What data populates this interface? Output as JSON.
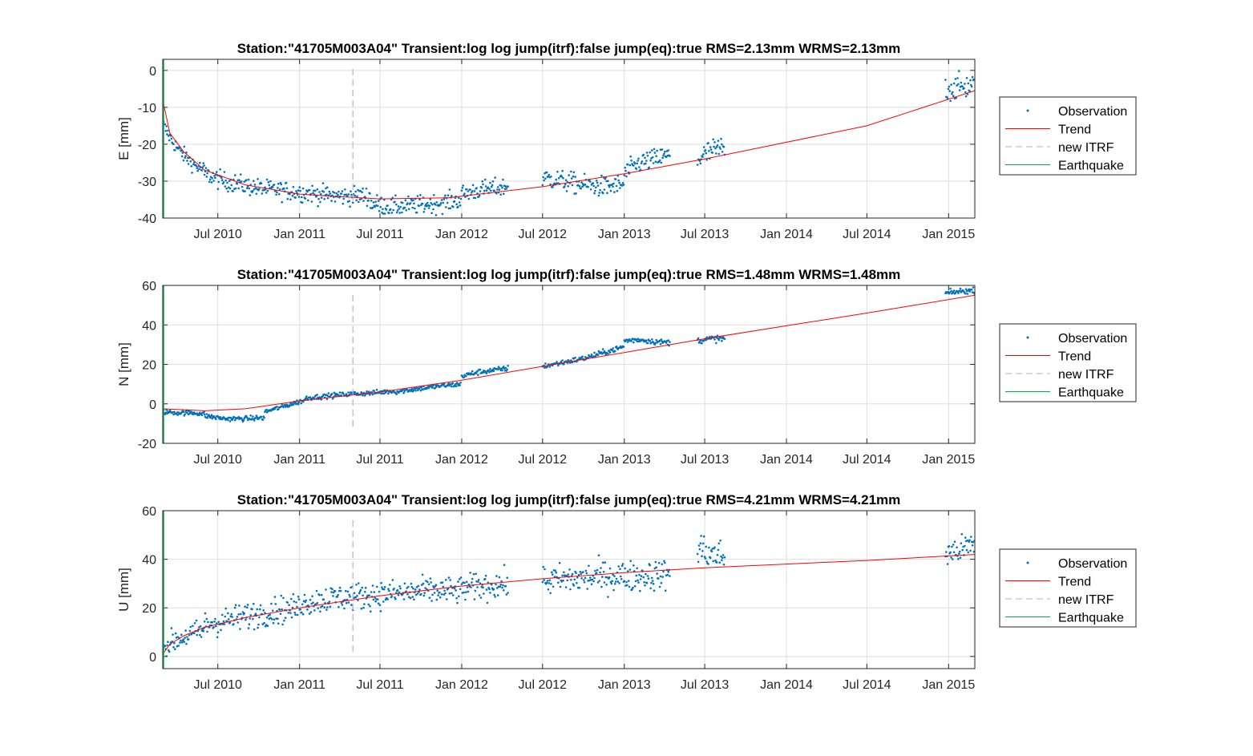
{
  "colors": {
    "observation": "#0072BD",
    "trend": "#FF0000",
    "itrf": "#B0B0D8",
    "earthquake": "#00B050",
    "grid": "#DEDEDE",
    "axis": "#262626"
  },
  "legend": {
    "observation": "Observation",
    "trend": "Trend",
    "itrf": "new ITRF",
    "earthquake": "Earthquake"
  },
  "chart_data": [
    {
      "type": "scatter",
      "component": "E",
      "title": "Station:\"41705M003A04\" Transient:log log jump(itrf):false  jump(eq):true  RMS=2.13mm WRMS=2.13mm",
      "ylabel": "E [mm]",
      "xlim": [
        "2010-02-27",
        "2015-03-01"
      ],
      "ylim": [
        -40,
        3
      ],
      "yticks": [
        0,
        -10,
        -20,
        -30,
        -40
      ],
      "xticks": [
        "Jul 2010",
        "Jan 2011",
        "Jul 2011",
        "Jan 2012",
        "Jul 2012",
        "Jan 2013",
        "Jul 2013",
        "Jan 2014",
        "Jul 2014",
        "Jan 2015"
      ],
      "itrf_jump": "2011-05-01",
      "earthquake": "2010-02-27",
      "trend": {
        "x": [
          "2010-02-27",
          "2010-03-15",
          "2010-04-15",
          "2010-06-01",
          "2010-09-01",
          "2011-01-01",
          "2011-04-01",
          "2011-07-01",
          "2011-12-01",
          "2012-07-01",
          "2013-01-01",
          "2013-07-01",
          "2014-07-01",
          "2015-03-01"
        ],
        "y": [
          -8,
          -17,
          -22,
          -27,
          -31,
          -33.5,
          -34.2,
          -34.8,
          -34.5,
          -31.5,
          -28,
          -24,
          -15,
          -5.5
        ]
      },
      "observations": [
        {
          "start": "2010-03-01",
          "end": "2010-06-01",
          "y": [
            -15,
            -19,
            -22,
            -24,
            -26,
            -27
          ],
          "scatter": 1.5
        },
        {
          "start": "2010-06-01",
          "end": "2010-12-31",
          "y": [
            -28,
            -30,
            -31,
            -32,
            -32.5,
            -33
          ],
          "scatter": 1.8
        },
        {
          "start": "2011-01-01",
          "end": "2011-06-10",
          "y": [
            -33,
            -33.5,
            -34,
            -34,
            -34
          ],
          "scatter": 1.8
        },
        {
          "start": "2011-06-10",
          "end": "2011-12-31",
          "y": [
            -36,
            -37,
            -36.5,
            -36,
            -35
          ],
          "scatter": 1.8
        },
        {
          "start": "2012-01-01",
          "end": "2012-04-15",
          "y": [
            -33.5,
            -32.5,
            -32,
            -31.5
          ],
          "scatter": 1.8
        },
        {
          "start": "2012-07-01",
          "end": "2013-01-01",
          "y": [
            -29,
            -30,
            -31,
            -31.5,
            -31
          ],
          "scatter": 2.0
        },
        {
          "start": "2013-01-01",
          "end": "2013-04-15",
          "y": [
            -28,
            -25,
            -24,
            -23
          ],
          "scatter": 2.0
        },
        {
          "start": "2013-06-15",
          "end": "2013-08-15",
          "y": [
            -24,
            -22,
            -21
          ],
          "scatter": 2.5
        },
        {
          "start": "2014-12-25",
          "end": "2015-03-01",
          "y": [
            -5,
            -4.5,
            -4
          ],
          "scatter": 2.5
        }
      ]
    },
    {
      "type": "scatter",
      "component": "N",
      "title": "Station:\"41705M003A04\" Transient:log log jump(itrf):false  jump(eq):true  RMS=1.48mm WRMS=1.48mm",
      "ylabel": "N [mm]",
      "xlim": [
        "2010-02-27",
        "2015-03-01"
      ],
      "ylim": [
        -20,
        60
      ],
      "yticks": [
        60,
        40,
        20,
        0,
        -20
      ],
      "xticks": [
        "Jul 2010",
        "Jan 2011",
        "Jul 2011",
        "Jan 2012",
        "Jul 2012",
        "Jan 2013",
        "Jul 2013",
        "Jan 2014",
        "Jul 2014",
        "Jan 2015"
      ],
      "itrf_jump": "2011-05-01",
      "earthquake": "2010-02-27",
      "trend": {
        "x": [
          "2010-02-27",
          "2010-06-01",
          "2010-09-01",
          "2011-01-01",
          "2011-07-01",
          "2012-01-01",
          "2012-07-01",
          "2013-01-01",
          "2013-07-01",
          "2014-07-01",
          "2015-03-01"
        ],
        "y": [
          -2.5,
          -3.5,
          -2.5,
          1.5,
          6,
          12,
          19,
          26,
          33,
          46,
          55
        ]
      },
      "observations": [
        {
          "start": "2010-03-01",
          "end": "2010-06-01",
          "y": [
            -4,
            -4.5,
            -4.5,
            -5
          ],
          "scatter": 0.9
        },
        {
          "start": "2010-06-01",
          "end": "2010-10-15",
          "y": [
            -6,
            -7.5,
            -7.5,
            -7
          ],
          "scatter": 0.9
        },
        {
          "start": "2010-10-15",
          "end": "2011-01-15",
          "y": [
            -4,
            -2,
            0,
            2
          ],
          "scatter": 0.9
        },
        {
          "start": "2011-01-15",
          "end": "2011-08-01",
          "y": [
            3,
            4,
            5,
            5.5,
            6.5
          ],
          "scatter": 0.9
        },
        {
          "start": "2011-08-01",
          "end": "2011-12-31",
          "y": [
            6,
            7.5,
            9,
            10
          ],
          "scatter": 0.9
        },
        {
          "start": "2012-01-01",
          "end": "2012-04-15",
          "y": [
            14,
            16,
            17,
            18
          ],
          "scatter": 1.0
        },
        {
          "start": "2012-07-01",
          "end": "2013-01-01",
          "y": [
            19,
            21,
            23,
            26,
            29
          ],
          "scatter": 1.0
        },
        {
          "start": "2013-01-01",
          "end": "2013-04-15",
          "y": [
            32,
            32.5,
            31.5,
            31
          ],
          "scatter": 1.0
        },
        {
          "start": "2013-06-15",
          "end": "2013-08-15",
          "y": [
            32,
            33,
            33
          ],
          "scatter": 1.2
        },
        {
          "start": "2014-12-25",
          "end": "2015-03-01",
          "y": [
            56,
            57,
            57.5
          ],
          "scatter": 1.0
        }
      ]
    },
    {
      "type": "scatter",
      "component": "U",
      "title": "Station:\"41705M003A04\" Transient:log log jump(itrf):false  jump(eq):true  RMS=4.21mm WRMS=4.21mm",
      "ylabel": "U [mm]",
      "xlim": [
        "2010-02-27",
        "2015-03-01"
      ],
      "ylim": [
        -5,
        60
      ],
      "yticks": [
        60,
        40,
        20,
        0
      ],
      "xticks": [
        "Jul 2010",
        "Jan 2011",
        "Jul 2011",
        "Jan 2012",
        "Jul 2012",
        "Jan 2013",
        "Jul 2013",
        "Jan 2014",
        "Jul 2014",
        "Jan 2015"
      ],
      "itrf_jump": "2011-05-01",
      "earthquake": "2010-02-27",
      "trend": {
        "x": [
          "2010-02-27",
          "2010-03-15",
          "2010-04-15",
          "2010-06-01",
          "2010-09-01",
          "2011-01-01",
          "2011-07-01",
          "2012-01-01",
          "2012-07-01",
          "2013-01-01",
          "2013-07-01",
          "2014-07-01",
          "2015-03-01"
        ],
        "y": [
          1,
          5,
          8.5,
          12,
          16,
          20,
          25,
          29,
          32,
          34.5,
          36.5,
          39.5,
          42
        ]
      },
      "observations": [
        {
          "start": "2010-03-01",
          "end": "2010-06-01",
          "y": [
            4,
            7,
            9,
            11
          ],
          "scatter": 3.5
        },
        {
          "start": "2010-06-01",
          "end": "2010-12-31",
          "y": [
            13,
            15,
            17,
            19,
            20
          ],
          "scatter": 4.0
        },
        {
          "start": "2011-01-01",
          "end": "2011-12-31",
          "y": [
            22,
            24,
            25,
            26,
            27,
            27
          ],
          "scatter": 4.0
        },
        {
          "start": "2012-01-01",
          "end": "2012-04-15",
          "y": [
            28,
            29,
            30
          ],
          "scatter": 4.0
        },
        {
          "start": "2012-07-01",
          "end": "2013-04-15",
          "y": [
            31,
            32,
            33,
            33,
            34
          ],
          "scatter": 4.5
        },
        {
          "start": "2013-06-15",
          "end": "2013-08-15",
          "y": [
            45,
            42,
            41
          ],
          "scatter": 5.0
        },
        {
          "start": "2014-12-25",
          "end": "2015-03-01",
          "y": [
            42,
            44,
            46
          ],
          "scatter": 4.0
        }
      ]
    }
  ]
}
